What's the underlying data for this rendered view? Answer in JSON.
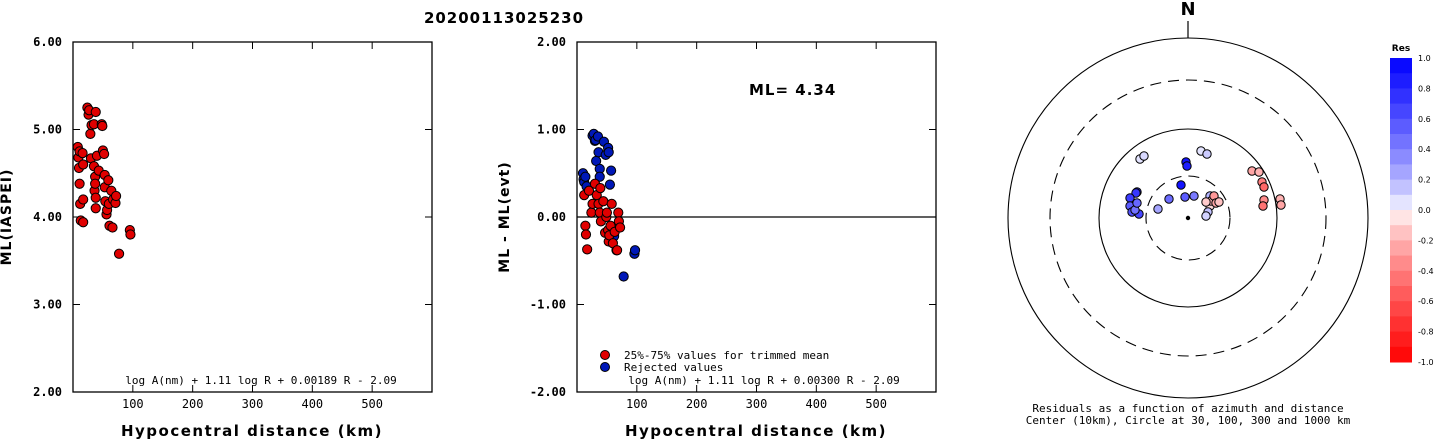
{
  "title": "20200113025230",
  "colors": {
    "red": "#e00000",
    "blue": "#0018b8",
    "axis": "#000000"
  },
  "chart_data": [
    {
      "id": "ml-vs-distance",
      "type": "scatter",
      "xlabel": "Hypocentral distance (km)",
      "ylabel": "ML(IASPEI)",
      "xlim": [
        0,
        600
      ],
      "ylim": [
        2.0,
        6.0
      ],
      "xticks": [
        "100",
        "200",
        "300",
        "400",
        "500"
      ],
      "xtick_values": [
        100,
        200,
        300,
        400,
        500
      ],
      "yticks": [
        "2.00",
        "3.00",
        "4.00",
        "5.00",
        "6.00"
      ],
      "ytick_values": [
        2,
        3,
        4,
        5,
        6
      ],
      "formula": "log A(nm) + 1.11 log R + 0.00189 R - 2.09",
      "series": [
        {
          "color": "red",
          "points": [
            [
              8,
              4.8
            ],
            [
              9,
              4.68
            ],
            [
              10,
              4.56
            ],
            [
              11,
              4.75
            ],
            [
              11,
              4.38
            ],
            [
              12,
              4.15
            ],
            [
              13,
              3.96
            ],
            [
              16,
              4.73
            ],
            [
              17,
              4.6
            ],
            [
              17,
              4.2
            ],
            [
              17,
              3.94
            ],
            [
              24,
              5.25
            ],
            [
              26,
              5.17
            ],
            [
              27,
              5.22
            ],
            [
              29,
              4.95
            ],
            [
              30,
              4.67
            ],
            [
              31,
              5.05
            ],
            [
              35,
              5.06
            ],
            [
              35,
              4.58
            ],
            [
              36,
              4.3
            ],
            [
              37,
              4.46
            ],
            [
              37,
              4.38
            ],
            [
              38,
              4.1
            ],
            [
              38,
              4.22
            ],
            [
              38,
              5.2
            ],
            [
              40,
              4.7
            ],
            [
              43,
              4.53
            ],
            [
              48,
              5.06
            ],
            [
              49,
              5.04
            ],
            [
              50,
              4.76
            ],
            [
              52,
              4.72
            ],
            [
              53,
              4.48
            ],
            [
              53,
              4.34
            ],
            [
              54,
              4.18
            ],
            [
              56,
              4.03
            ],
            [
              57,
              4.08
            ],
            [
              59,
              4.42
            ],
            [
              60,
              4.15
            ],
            [
              61,
              3.9
            ],
            [
              64,
              4.3
            ],
            [
              66,
              3.88
            ],
            [
              67,
              4.2
            ],
            [
              71,
              4.16
            ],
            [
              72,
              4.24
            ],
            [
              77,
              3.58
            ],
            [
              95,
              3.85
            ],
            [
              96,
              3.8
            ]
          ]
        }
      ]
    },
    {
      "id": "residuals-vs-distance",
      "type": "scatter",
      "xlabel": "Hypocentral distance (km)",
      "ylabel": "ML - ML(evt)",
      "xlim": [
        0,
        600
      ],
      "ylim": [
        -2.0,
        2.0
      ],
      "xticks": [
        "100",
        "200",
        "300",
        "400",
        "500"
      ],
      "xtick_values": [
        100,
        200,
        300,
        400,
        500
      ],
      "yticks": [
        "-2.00",
        "-1.00",
        "0.00",
        "1.00",
        "2.00"
      ],
      "ytick_values": [
        -2,
        -1,
        0,
        1,
        2
      ],
      "reference_line": 0,
      "annotation": "ML= 4.34",
      "formula": "log A(nm) + 1.11 log R + 0.00300 R - 2.09",
      "legend": [
        {
          "color": "red",
          "label": "25%-75% values for trimmed mean"
        },
        {
          "color": "blue",
          "label": "Rejected values"
        }
      ],
      "series": [
        {
          "color": "blue",
          "points": [
            [
              10,
              0.5
            ],
            [
              11,
              0.43
            ],
            [
              12,
              0.4
            ],
            [
              14,
              0.46
            ],
            [
              16,
              0.35
            ],
            [
              26,
              0.93
            ],
            [
              28,
              0.95
            ],
            [
              30,
              0.87
            ],
            [
              31,
              0.88
            ],
            [
              32,
              0.64
            ],
            [
              35,
              0.92
            ],
            [
              36,
              0.74
            ],
            [
              38,
              0.55
            ],
            [
              38,
              0.46
            ],
            [
              45,
              0.86
            ],
            [
              48,
              0.71
            ],
            [
              52,
              0.79
            ],
            [
              53,
              0.74
            ],
            [
              55,
              0.37
            ],
            [
              57,
              0.53
            ],
            [
              62,
              -0.22
            ],
            [
              66,
              -0.38
            ],
            [
              78,
              -0.68
            ],
            [
              96,
              -0.42
            ],
            [
              97,
              -0.38
            ]
          ]
        },
        {
          "color": "red",
          "points": [
            [
              12,
              0.25
            ],
            [
              14,
              -0.1
            ],
            [
              15,
              -0.2
            ],
            [
              17,
              -0.37
            ],
            [
              20,
              0.3
            ],
            [
              24,
              0.05
            ],
            [
              26,
              0.15
            ],
            [
              30,
              0.38
            ],
            [
              33,
              0.25
            ],
            [
              36,
              0.15
            ],
            [
              38,
              0.05
            ],
            [
              39,
              0.33
            ],
            [
              40,
              -0.05
            ],
            [
              44,
              0.18
            ],
            [
              47,
              -0.18
            ],
            [
              49,
              0.0
            ],
            [
              50,
              0.05
            ],
            [
              52,
              -0.15
            ],
            [
              53,
              -0.28
            ],
            [
              54,
              -0.21
            ],
            [
              56,
              -0.1
            ],
            [
              58,
              0.15
            ],
            [
              60,
              -0.3
            ],
            [
              63,
              -0.17
            ],
            [
              67,
              -0.38
            ],
            [
              69,
              0.05
            ],
            [
              70,
              -0.05
            ],
            [
              72,
              -0.12
            ]
          ]
        }
      ]
    },
    {
      "id": "azimuth-polar",
      "type": "scatter",
      "north_label": "N",
      "caption_line1": "Residuals as a function of azimuth and distance",
      "caption_line2": "Center (10km), Circle at 30, 100, 300 and 1000 km",
      "rings": [
        {
          "label": "30 km",
          "style": "dashed"
        },
        {
          "label": "100 km",
          "style": "solid"
        },
        {
          "label": "300 km",
          "style": "dashed"
        },
        {
          "label": "1000 km",
          "style": "solid"
        }
      ],
      "colorbar": {
        "title": "Res",
        "ticks": [
          "1.0",
          "0.8",
          "0.6",
          "0.4",
          "0.2",
          "0.0",
          "-0.2",
          "-0.4",
          "-0.6",
          "-0.8",
          "-1.0"
        ],
        "tick_values": [
          1.0,
          0.8,
          0.6,
          0.4,
          0.2,
          0.0,
          -0.2,
          -0.4,
          -0.6,
          -0.8,
          -1.0
        ]
      },
      "stations": [
        {
          "east": -51,
          "north": 26,
          "res": 0.75
        },
        {
          "east": -52,
          "north": 25,
          "res": 0.72
        },
        {
          "east": -58,
          "north": 20,
          "res": 0.7
        },
        {
          "east": -58,
          "north": 12,
          "res": 0.55
        },
        {
          "east": -56,
          "north": 6,
          "res": 0.6
        },
        {
          "east": -49,
          "north": 4,
          "res": 0.65
        },
        {
          "east": -53,
          "north": 8,
          "res": 0.45
        },
        {
          "east": -51,
          "north": 15,
          "res": 0.5
        },
        {
          "east": -48,
          "north": 59,
          "res": 0.05
        },
        {
          "east": -44,
          "north": 62,
          "res": 0.08
        },
        {
          "east": -30,
          "north": 9,
          "res": 0.25
        },
        {
          "east": -19,
          "north": 19,
          "res": 0.48
        },
        {
          "east": -7,
          "north": 33,
          "res": 0.9
        },
        {
          "east": -3,
          "north": 21,
          "res": 0.55
        },
        {
          "east": 6,
          "north": 22,
          "res": 0.42
        },
        {
          "east": -2,
          "north": 56,
          "res": 0.9
        },
        {
          "east": -1,
          "north": 52,
          "res": 0.85
        },
        {
          "east": 13,
          "north": 67,
          "res": 0.05
        },
        {
          "east": 19,
          "north": 64,
          "res": 0.12
        },
        {
          "east": 22,
          "north": 22,
          "res": 0.2
        },
        {
          "east": 22,
          "north": 12,
          "res": -0.08
        },
        {
          "east": 23,
          "north": 17,
          "res": -0.2
        },
        {
          "east": 18,
          "north": 16,
          "res": -0.12
        },
        {
          "east": 20,
          "north": 6,
          "res": 0.15
        },
        {
          "east": 26,
          "north": 22,
          "res": -0.3
        },
        {
          "east": 28,
          "north": 15,
          "res": -0.25
        },
        {
          "east": 31,
          "north": 16,
          "res": -0.15
        },
        {
          "east": 18,
          "north": 2,
          "res": 0.1
        },
        {
          "east": 64,
          "north": 47,
          "res": -0.25
        },
        {
          "east": 71,
          "north": 46,
          "res": -0.2
        },
        {
          "east": 74,
          "north": 36,
          "res": -0.4
        },
        {
          "east": 76,
          "north": 31,
          "res": -0.5
        },
        {
          "east": 76,
          "north": 18,
          "res": -0.35
        },
        {
          "east": 75,
          "north": 12,
          "res": -0.45
        },
        {
          "east": 92,
          "north": 19,
          "res": -0.2
        },
        {
          "east": 93,
          "north": 13,
          "res": -0.25
        }
      ]
    }
  ]
}
